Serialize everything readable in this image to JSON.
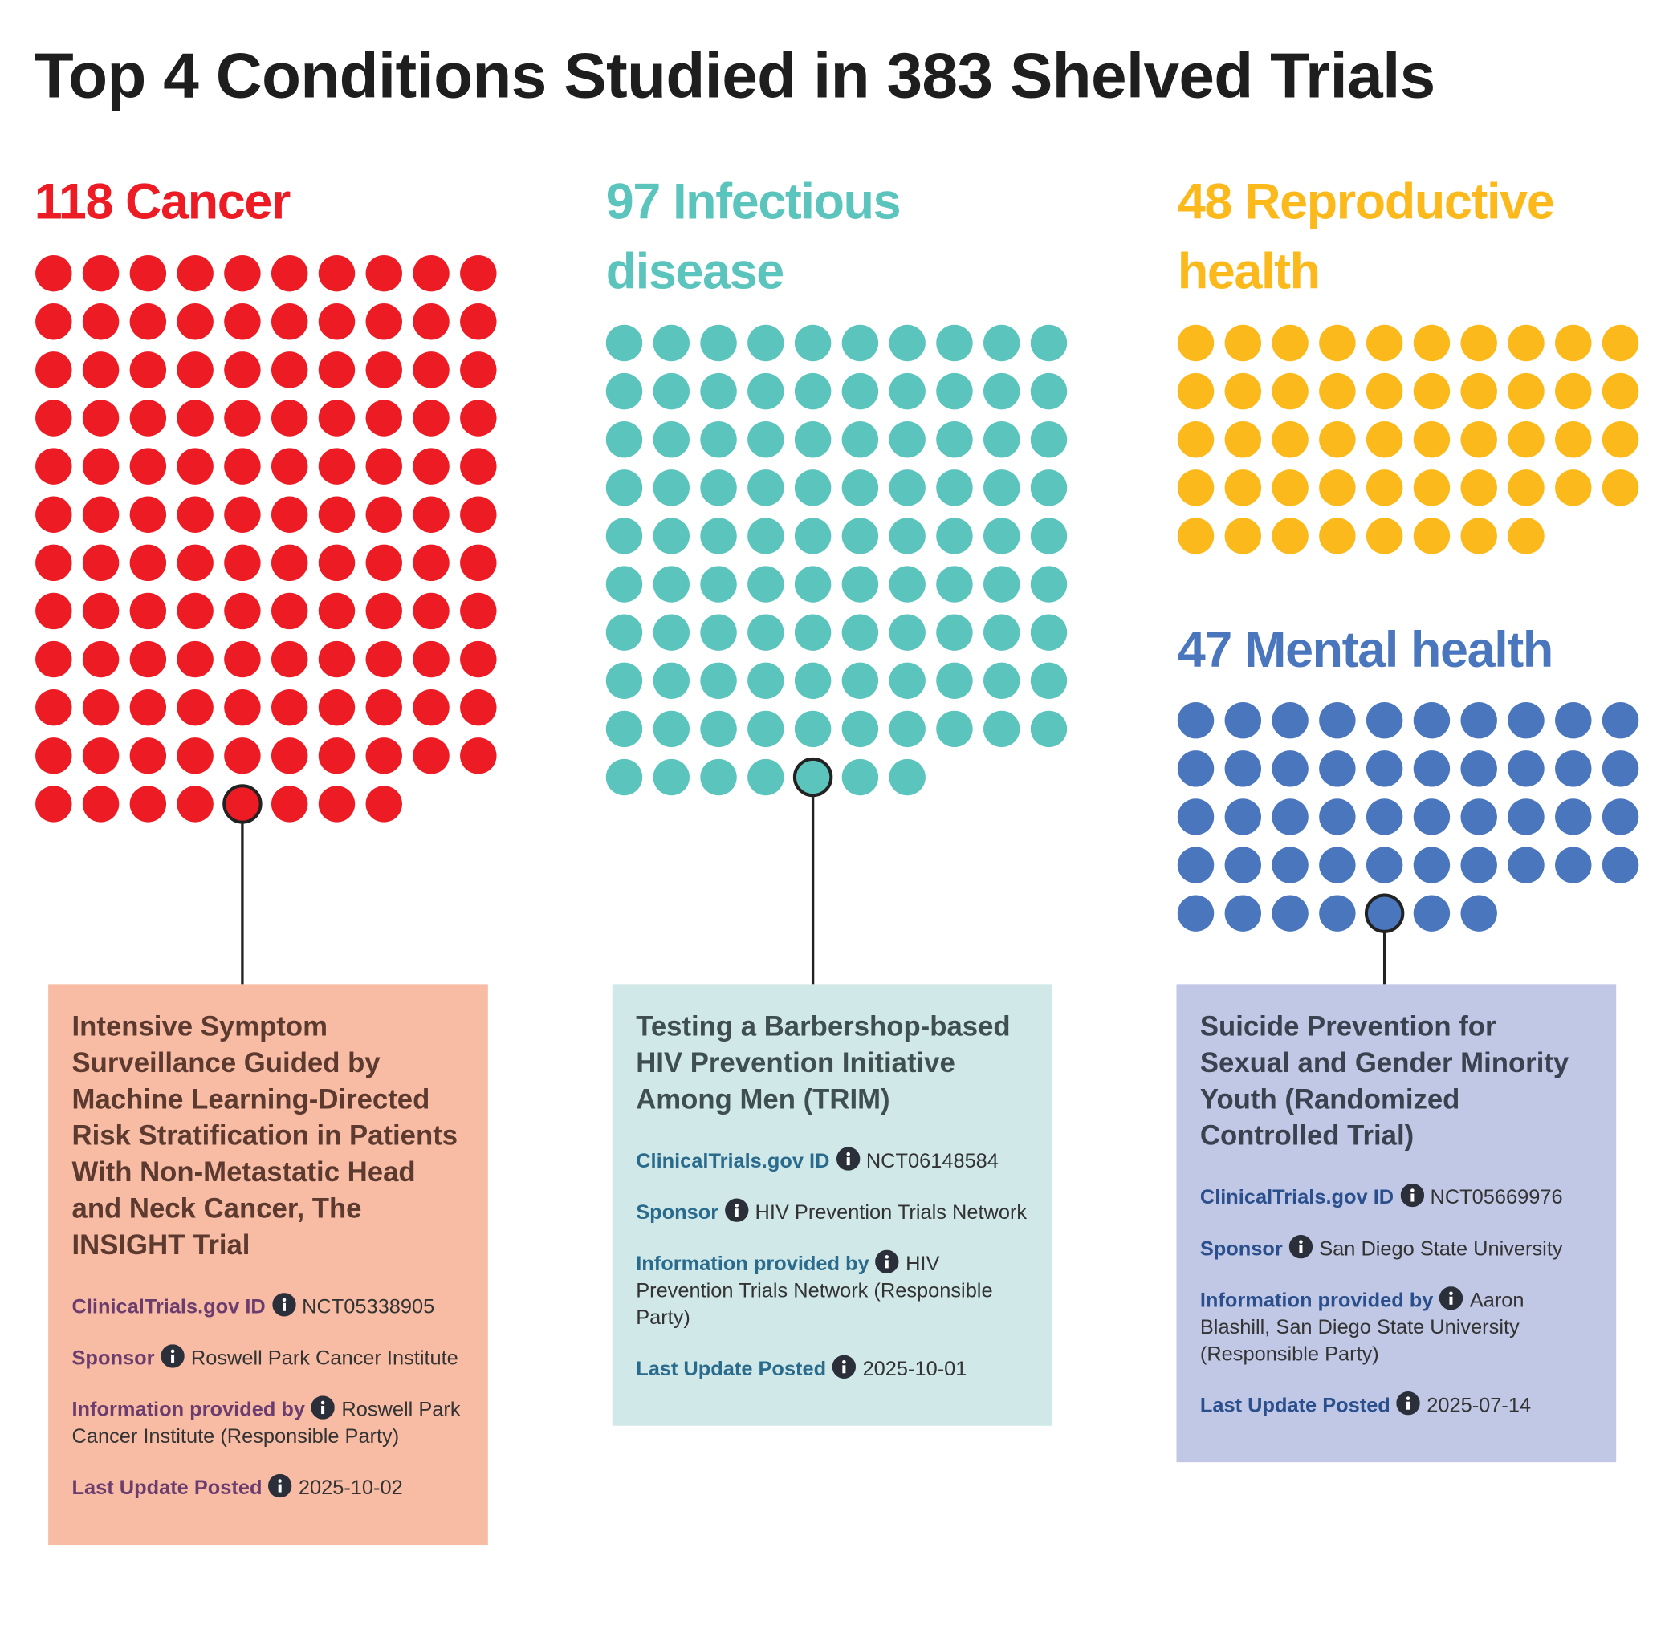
{
  "chart_data": {
    "type": "unit",
    "title": "Top 4 Conditions Studied in 383 Shelved Trials",
    "groups": [
      {
        "count": 118,
        "name": "Cancer",
        "color": "#ed1c24",
        "card": {
          "background": "#f8bca5",
          "title_color": "#5d3a2f",
          "label_color": "#6a3d6e",
          "title": "Intensive Symptom Surveillance Guided by Machine Learning-Directed Risk Stratification in Patients With Non-Metastatic Head and Neck Cancer, The INSIGHT Trial",
          "fields": [
            {
              "label": "ClinicalTrials.gov ID",
              "value": "NCT05338905"
            },
            {
              "label": "Sponsor",
              "value": "Roswell Park Cancer Institute"
            },
            {
              "label": "Information provided by",
              "value": "Roswell Park Cancer Institute (Responsible Party)"
            },
            {
              "label": "Last Update Posted",
              "value": "2025-10-02"
            }
          ]
        }
      },
      {
        "count": 97,
        "name": "Infectious disease",
        "color": "#5bc4bd",
        "card": {
          "background": "#d0e9e8",
          "title_color": "#3f4f4f",
          "label_color": "#2a6a8c",
          "title": "Testing a Barbershop-based HIV Prevention Initiative Among Men (TRIM)",
          "fields": [
            {
              "label": "ClinicalTrials.gov ID",
              "value": "NCT06148584"
            },
            {
              "label": "Sponsor",
              "value": "HIV Prevention Trials Network"
            },
            {
              "label": "Information provided by",
              "value": "HIV Prevention Trials Network (Responsible Party)"
            },
            {
              "label": "Last Update Posted",
              "value": "2025-10-01"
            }
          ]
        }
      },
      {
        "count": 48,
        "name": "Reproductive health",
        "color": "#fbb91c"
      },
      {
        "count": 47,
        "name": "Mental health",
        "color": "#4a76bd",
        "card": {
          "background": "#c0c8e5",
          "title_color": "#3a4250",
          "label_color": "#2a4f8c",
          "title": "Suicide Prevention for Sexual and Gender Minority Youth (Randomized Controlled Trial)",
          "fields": [
            {
              "label": "ClinicalTrials.gov ID",
              "value": "NCT05669976"
            },
            {
              "label": "Sponsor",
              "value": "San Diego State University"
            },
            {
              "label": "Information provided by",
              "value": "Aaron Blashill, San Diego State University (Responsible Party)"
            },
            {
              "label": "Last Update Posted",
              "value": "2025-07-14"
            }
          ]
        }
      }
    ]
  }
}
